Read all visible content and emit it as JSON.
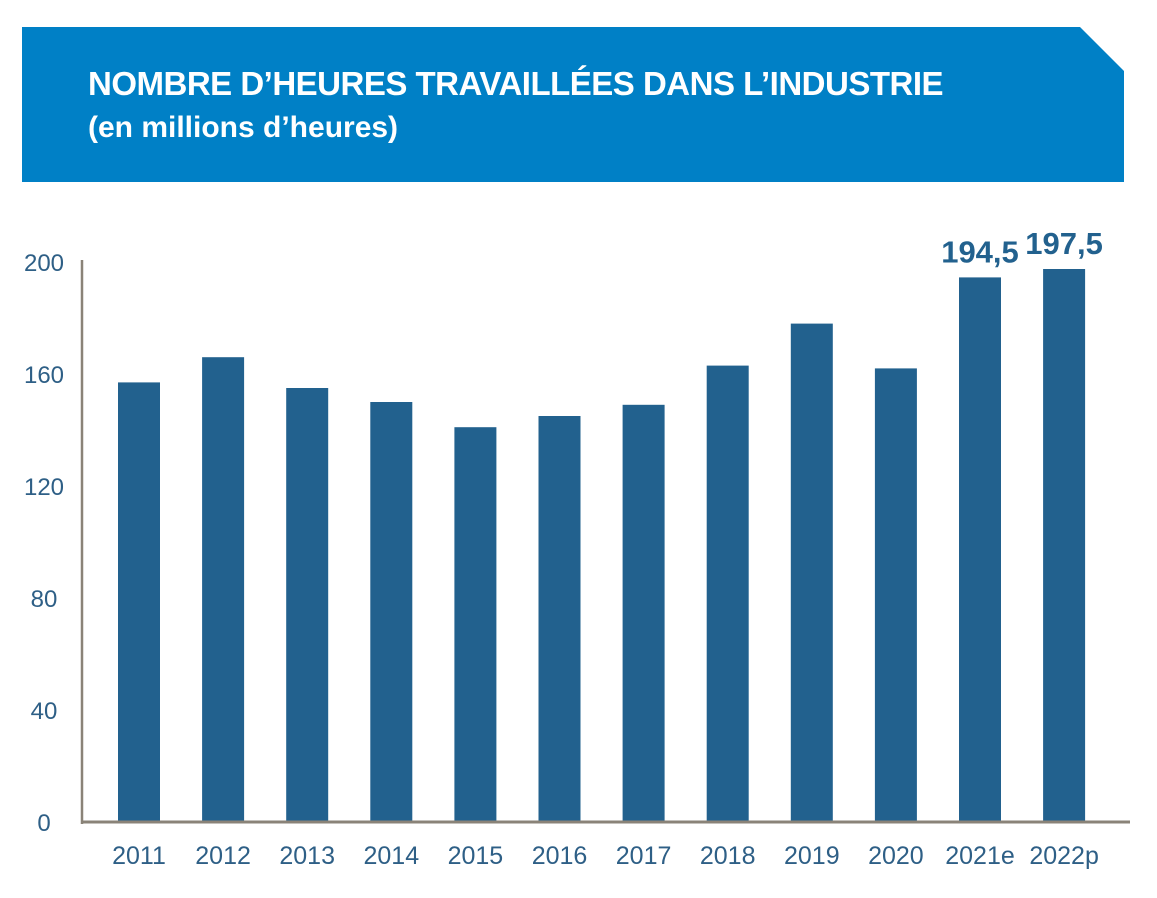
{
  "header": {
    "title": "NOMBRE D’HEURES TRAVAILLÉES DANS L’INDUSTRIE",
    "subtitle": "(en millions d’heures)"
  },
  "colors": {
    "banner": "#0080c6",
    "bar": "#22618e",
    "axis": "#8a8378",
    "tick_text": "#2e5f86",
    "value_label": "#22618e"
  },
  "chart_data": {
    "type": "bar",
    "title": "NOMBRE D’HEURES TRAVAILLÉES DANS L’INDUSTRIE",
    "subtitle": "(en millions d’heures)",
    "xlabel": "",
    "ylabel": "",
    "categories": [
      "2011",
      "2012",
      "2013",
      "2014",
      "2015",
      "2016",
      "2017",
      "2018",
      "2019",
      "2020",
      "2021e",
      "2022p"
    ],
    "values": [
      157,
      166,
      155,
      150,
      141,
      145,
      149,
      163,
      178,
      162,
      194.5,
      197.5
    ],
    "data_labels": [
      "",
      "",
      "",
      "",
      "",
      "",
      "",
      "",
      "",
      "",
      "194,5",
      "197,5"
    ],
    "ylim": [
      0,
      200
    ],
    "yticks": [
      0,
      40,
      80,
      120,
      160,
      200
    ],
    "grid": false,
    "legend": "none"
  }
}
